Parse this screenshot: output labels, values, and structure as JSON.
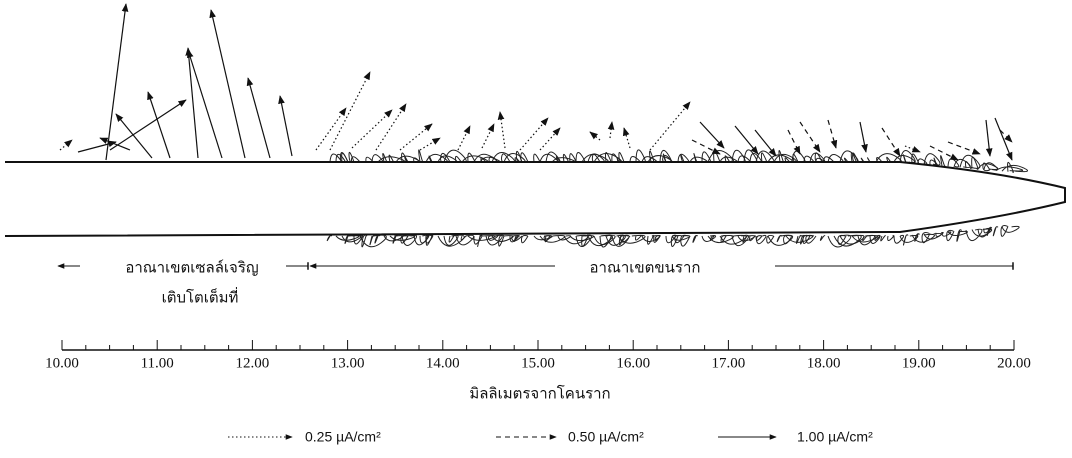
{
  "zones": [
    {
      "label": "อาณาเขตเซลล์เจริญ",
      "label2": "เติบโตเต็มที่"
    },
    {
      "label": "อาณาเขตขนราก"
    }
  ],
  "axis": {
    "label": "มิลลิเมตรจากโคนราก",
    "ticks": [
      {
        "value": 10,
        "label": "10.00"
      },
      {
        "value": 11,
        "label": "11.00"
      },
      {
        "value": 12,
        "label": "12.00"
      },
      {
        "value": 13,
        "label": "13.00"
      },
      {
        "value": 14,
        "label": "14.00"
      },
      {
        "value": 15,
        "label": "15.00"
      },
      {
        "value": 16,
        "label": "16.00"
      },
      {
        "value": 17,
        "label": "17.00"
      },
      {
        "value": 18,
        "label": "18.00"
      },
      {
        "value": 19,
        "label": "19.00"
      },
      {
        "value": 20,
        "label": "20.00"
      }
    ]
  },
  "legend": [
    {
      "label": "0.25 µA/cm²",
      "style": "dotted"
    },
    {
      "label": "0.50 µA/cm²",
      "style": "dashed"
    },
    {
      "label": "1.00 µA/cm²",
      "style": "solid"
    }
  ]
}
